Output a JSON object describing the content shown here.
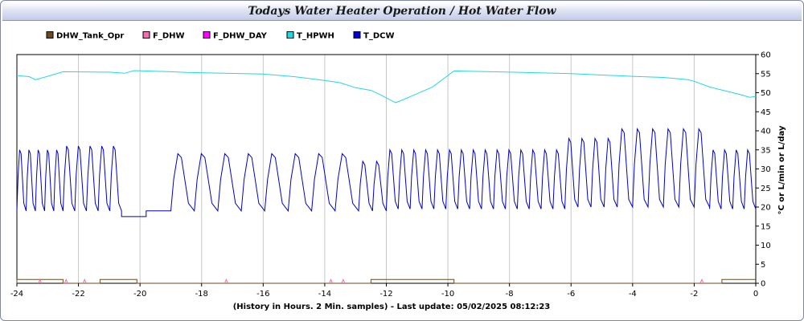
{
  "chart_data": {
    "type": "line",
    "title": "Todays Water Heater Operation / Hot Water Flow",
    "xlabel": "(History in Hours. 2 Min. samples) - Last update: 05/02/2025 08:12:23",
    "ylabel": "°C or L/min or L/day",
    "xlim": [
      -24,
      0
    ],
    "ylim": [
      0,
      60
    ],
    "xticks": [
      -24,
      -22,
      -20,
      -18,
      -16,
      -14,
      -12,
      -10,
      -8,
      -6,
      -4,
      -2,
      0
    ],
    "yticks": [
      0,
      5,
      10,
      15,
      20,
      25,
      30,
      35,
      40,
      45,
      50,
      55,
      60
    ],
    "grid": "vertical",
    "legend_position": "top",
    "series": [
      {
        "name": "DHW_Tank_Opr",
        "color": "#6b4a1f",
        "style": "step",
        "points": [
          [
            -24,
            0
          ],
          [
            -24,
            1
          ],
          [
            -22.5,
            1
          ],
          [
            -22.5,
            0
          ],
          [
            -21.3,
            0
          ],
          [
            -21.3,
            1
          ],
          [
            -20.1,
            1
          ],
          [
            -20.1,
            0
          ],
          [
            -12.5,
            0
          ],
          [
            -12.5,
            1
          ],
          [
            -9.8,
            1
          ],
          [
            -9.8,
            0
          ],
          [
            -1.1,
            0
          ],
          [
            -1.1,
            1
          ],
          [
            0,
            1
          ]
        ]
      },
      {
        "name": "F_DHW",
        "color": "#f070b0",
        "style": "spikes",
        "points": [
          [
            -23.25,
            1
          ],
          [
            -22.4,
            1
          ],
          [
            -21.8,
            1
          ],
          [
            -17.2,
            1
          ],
          [
            -13.8,
            1
          ],
          [
            -13.4,
            1
          ],
          [
            -1.75,
            1
          ]
        ]
      },
      {
        "name": "F_DHW_DAY",
        "color": "#ff00ff",
        "style": "line",
        "points": []
      },
      {
        "name": "T_HPWH",
        "color": "#22d8e0",
        "style": "line",
        "points": [
          [
            -24,
            54.5
          ],
          [
            -23.6,
            54.2
          ],
          [
            -23.4,
            53.4
          ],
          [
            -23,
            54.3
          ],
          [
            -22.5,
            55.5
          ],
          [
            -21,
            55.4
          ],
          [
            -20.5,
            55.1
          ],
          [
            -20.2,
            55.8
          ],
          [
            -19,
            55.5
          ],
          [
            -18.5,
            55.3
          ],
          [
            -16,
            54.9
          ],
          [
            -15,
            54.2
          ],
          [
            -14,
            53.2
          ],
          [
            -13.5,
            52.6
          ],
          [
            -13,
            51.3
          ],
          [
            -12.5,
            50.6
          ],
          [
            -12.2,
            49.5
          ],
          [
            -11.7,
            47.4
          ],
          [
            -11.5,
            48
          ],
          [
            -10.5,
            51.5
          ],
          [
            -9.8,
            55.7
          ],
          [
            -8,
            55.4
          ],
          [
            -6,
            55
          ],
          [
            -4,
            54.3
          ],
          [
            -3,
            54
          ],
          [
            -2.2,
            53.4
          ],
          [
            -2,
            53
          ],
          [
            -1.5,
            51.5
          ],
          [
            -1,
            50.5
          ],
          [
            -0.5,
            49.5
          ],
          [
            -0.2,
            48.8
          ],
          [
            0,
            49
          ]
        ]
      },
      {
        "name": "T_DCW",
        "color": "#0000cc",
        "style": "sawtooth",
        "segments": [
          {
            "from": -24,
            "to": -22.5,
            "period": 0.33,
            "low": 19,
            "high": 35
          },
          {
            "from": -22.5,
            "to": -20.6,
            "period": 0.38,
            "low": 19,
            "high": 36
          },
          {
            "from": -20.6,
            "to": -19.8,
            "low": 17.5,
            "flat": true
          },
          {
            "from": -19.8,
            "to": -19.0,
            "low": 19,
            "flat": true
          },
          {
            "from": -19.0,
            "to": -12.9,
            "period": 0.77,
            "low": 19,
            "high": 34
          },
          {
            "from": -12.9,
            "to": -12.0,
            "period": 0.45,
            "low": 19,
            "high": 32
          },
          {
            "from": -12.0,
            "to": -6.2,
            "period": 0.38,
            "low": 19.5,
            "high": 35
          },
          {
            "from": -6.2,
            "to": -4.5,
            "period": 0.42,
            "low": 20,
            "high": 38
          },
          {
            "from": -4.5,
            "to": -1.5,
            "period": 0.5,
            "low": 20,
            "high": 40.5
          },
          {
            "from": -1.5,
            "to": 0,
            "period": 0.38,
            "low": 19.5,
            "high": 35
          }
        ]
      }
    ]
  }
}
